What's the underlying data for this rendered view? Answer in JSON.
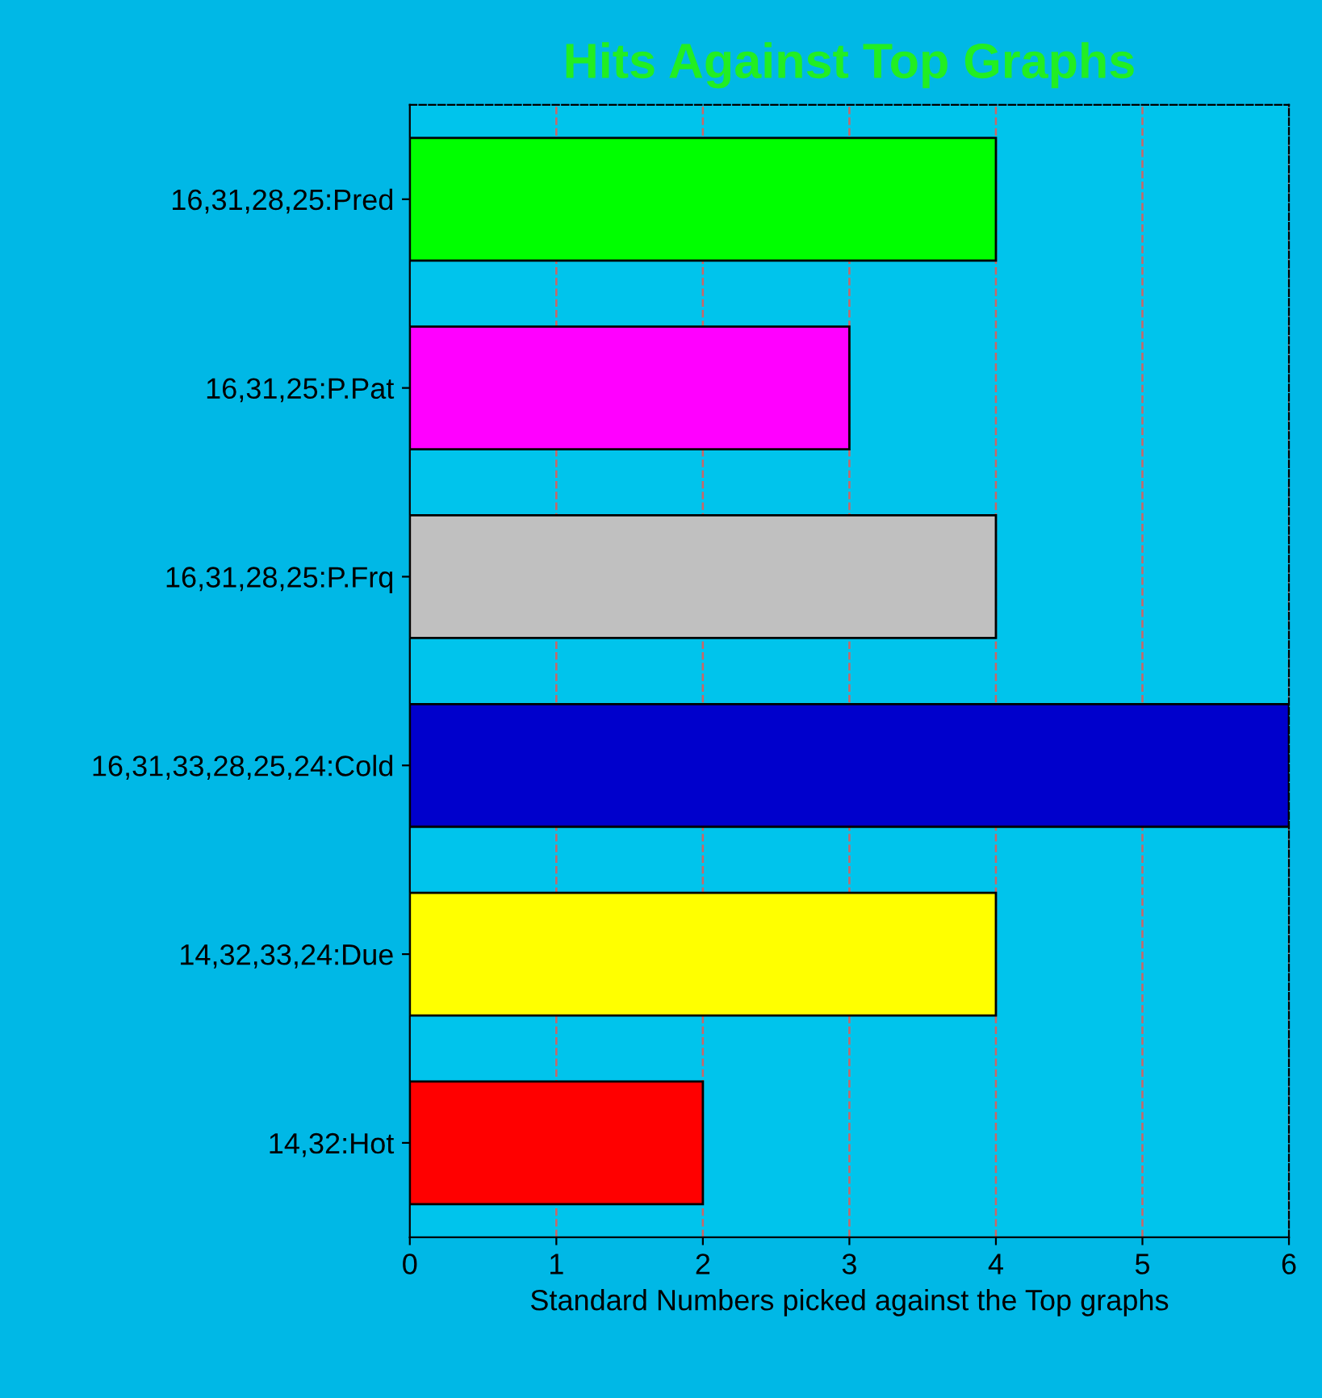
{
  "chart_data": {
    "type": "bar",
    "orientation": "horizontal",
    "title": "Hits Against Top Graphs",
    "xlabel": "Standard Numbers picked against the Top graphs",
    "categories": [
      "16,31,28,25:Pred",
      "16,31,25:P.Pat",
      "16,31,28,25:P.Frq",
      "16,31,33,28,25,24:Cold",
      "14,32,33,24:Due",
      "14,32:Hot"
    ],
    "values": [
      4,
      3,
      4,
      6,
      4,
      2
    ],
    "colors": [
      "#00ff00",
      "#ff00ff",
      "#c0c0c0",
      "#0000cc",
      "#ffff00",
      "#ff0000"
    ],
    "xlim": [
      0,
      6
    ],
    "xticks": [
      0,
      1,
      2,
      3,
      4,
      5,
      6
    ],
    "grid": "x"
  }
}
